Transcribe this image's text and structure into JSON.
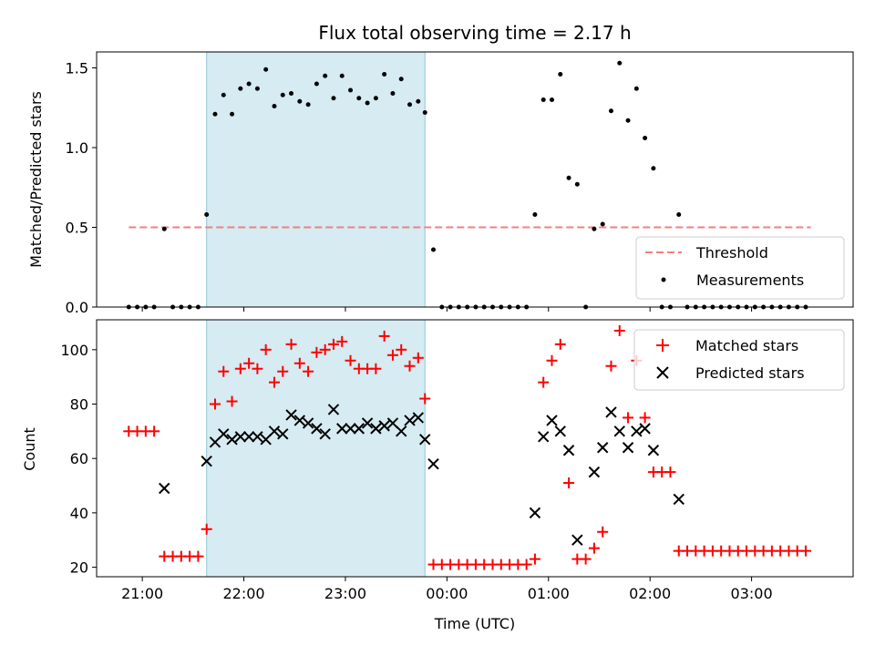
{
  "chart_data": [
    {
      "type": "scatter",
      "title": "Flux total observing time = 2.17 h",
      "ylabel": "Matched/Predicted stars",
      "xlabel": "",
      "x_unit": "hours (UTC, past midnight as 24+)",
      "xlim": [
        20.55,
        28.0
      ],
      "ylim": [
        0.0,
        1.6
      ],
      "yticks": [
        "0.0",
        "0.5",
        "1.0",
        "1.5"
      ],
      "shaded_interval": [
        "21:38",
        "23:47"
      ],
      "threshold": {
        "name": "Threshold",
        "value": 0.5,
        "x_range": [
          "20:52",
          "27:35"
        ],
        "color": "#f08080"
      },
      "legend": {
        "position": "lower-right",
        "entries": [
          "Threshold",
          "Measurements"
        ]
      },
      "series": [
        {
          "name": "Measurements",
          "color": "#000000",
          "points": [
            [
              "20:52",
              0.0
            ],
            [
              "20:57",
              0.0
            ],
            [
              "21:02",
              0.0
            ],
            [
              "21:07",
              0.0
            ],
            [
              "21:13",
              0.49
            ],
            [
              "21:18",
              0.0
            ],
            [
              "21:23",
              0.0
            ],
            [
              "21:28",
              0.0
            ],
            [
              "21:33",
              0.0
            ],
            [
              "21:38",
              0.58
            ],
            [
              "21:43",
              1.21
            ],
            [
              "21:48",
              1.33
            ],
            [
              "21:53",
              1.21
            ],
            [
              "21:58",
              1.37
            ],
            [
              "22:03",
              1.4
            ],
            [
              "22:08",
              1.37
            ],
            [
              "22:13",
              1.49
            ],
            [
              "22:18",
              1.26
            ],
            [
              "22:23",
              1.33
            ],
            [
              "22:28",
              1.34
            ],
            [
              "22:33",
              1.29
            ],
            [
              "22:38",
              1.27
            ],
            [
              "22:43",
              1.4
            ],
            [
              "22:48",
              1.45
            ],
            [
              "22:53",
              1.31
            ],
            [
              "22:58",
              1.45
            ],
            [
              "23:03",
              1.36
            ],
            [
              "23:08",
              1.31
            ],
            [
              "23:13",
              1.28
            ],
            [
              "23:18",
              1.31
            ],
            [
              "23:23",
              1.46
            ],
            [
              "23:28",
              1.34
            ],
            [
              "23:33",
              1.43
            ],
            [
              "23:38",
              1.27
            ],
            [
              "23:43",
              1.29
            ],
            [
              "23:47",
              1.22
            ],
            [
              "23:52",
              0.36
            ],
            [
              "23:57",
              0.0
            ],
            [
              "24:02",
              0.0
            ],
            [
              "24:07",
              0.0
            ],
            [
              "24:12",
              0.0
            ],
            [
              "24:17",
              0.0
            ],
            [
              "24:22",
              0.0
            ],
            [
              "24:27",
              0.0
            ],
            [
              "24:32",
              0.0
            ],
            [
              "24:37",
              0.0
            ],
            [
              "24:42",
              0.0
            ],
            [
              "24:47",
              0.0
            ],
            [
              "24:52",
              0.58
            ],
            [
              "24:57",
              1.3
            ],
            [
              "25:02",
              1.3
            ],
            [
              "25:07",
              1.46
            ],
            [
              "25:12",
              0.81
            ],
            [
              "25:17",
              0.77
            ],
            [
              "25:22",
              0.0
            ],
            [
              "25:27",
              0.49
            ],
            [
              "25:32",
              0.52
            ],
            [
              "25:37",
              1.23
            ],
            [
              "25:42",
              1.53
            ],
            [
              "25:47",
              1.17
            ],
            [
              "25:52",
              1.37
            ],
            [
              "25:57",
              1.06
            ],
            [
              "26:02",
              0.87
            ],
            [
              "26:07",
              0.0
            ],
            [
              "26:12",
              0.0
            ],
            [
              "26:17",
              0.58
            ],
            [
              "26:22",
              0.0
            ],
            [
              "26:27",
              0.0
            ],
            [
              "26:32",
              0.0
            ],
            [
              "26:37",
              0.0
            ],
            [
              "26:42",
              0.0
            ],
            [
              "26:47",
              0.0
            ],
            [
              "26:52",
              0.0
            ],
            [
              "26:57",
              0.0
            ],
            [
              "27:02",
              0.0
            ],
            [
              "27:07",
              0.0
            ],
            [
              "27:12",
              0.0
            ],
            [
              "27:17",
              0.0
            ],
            [
              "27:22",
              0.0
            ],
            [
              "27:27",
              0.0
            ],
            [
              "27:32",
              0.0
            ]
          ]
        }
      ]
    },
    {
      "type": "scatter",
      "title": "",
      "ylabel": "Count",
      "xlabel": "Time (UTC)",
      "x_unit": "hours (UTC, past midnight as 24+)",
      "xlim": [
        20.55,
        28.0
      ],
      "ylim": [
        16.5,
        111
      ],
      "yticks": [
        "20",
        "40",
        "60",
        "80",
        "100"
      ],
      "xticks": [
        "21:00",
        "22:00",
        "23:00",
        "00:00",
        "01:00",
        "02:00",
        "03:00"
      ],
      "shaded_interval": [
        "21:38",
        "23:47"
      ],
      "legend": {
        "position": "top-right",
        "entries": [
          "Matched stars",
          "Predicted stars"
        ]
      },
      "series": [
        {
          "name": "Matched stars",
          "marker": "plus",
          "color": "#ff0000",
          "points": [
            [
              "20:52",
              70
            ],
            [
              "20:57",
              70
            ],
            [
              "21:02",
              70
            ],
            [
              "21:07",
              70
            ],
            [
              "21:13",
              24
            ],
            [
              "21:18",
              24
            ],
            [
              "21:23",
              24
            ],
            [
              "21:28",
              24
            ],
            [
              "21:33",
              24
            ],
            [
              "21:38",
              34
            ],
            [
              "21:43",
              80
            ],
            [
              "21:48",
              92
            ],
            [
              "21:53",
              81
            ],
            [
              "21:58",
              93
            ],
            [
              "22:03",
              95
            ],
            [
              "22:08",
              93
            ],
            [
              "22:13",
              100
            ],
            [
              "22:18",
              88
            ],
            [
              "22:23",
              92
            ],
            [
              "22:28",
              102
            ],
            [
              "22:33",
              95
            ],
            [
              "22:38",
              92
            ],
            [
              "22:43",
              99
            ],
            [
              "22:48",
              100
            ],
            [
              "22:53",
              102
            ],
            [
              "22:58",
              103
            ],
            [
              "23:03",
              96
            ],
            [
              "23:08",
              93
            ],
            [
              "23:13",
              93
            ],
            [
              "23:18",
              93
            ],
            [
              "23:23",
              105
            ],
            [
              "23:28",
              98
            ],
            [
              "23:33",
              100
            ],
            [
              "23:38",
              94
            ],
            [
              "23:43",
              97
            ],
            [
              "23:47",
              82
            ],
            [
              "23:52",
              21
            ],
            [
              "23:57",
              21
            ],
            [
              "24:02",
              21
            ],
            [
              "24:07",
              21
            ],
            [
              "24:12",
              21
            ],
            [
              "24:17",
              21
            ],
            [
              "24:22",
              21
            ],
            [
              "24:27",
              21
            ],
            [
              "24:32",
              21
            ],
            [
              "24:37",
              21
            ],
            [
              "24:42",
              21
            ],
            [
              "24:47",
              21
            ],
            [
              "24:52",
              23
            ],
            [
              "24:57",
              88
            ],
            [
              "25:02",
              96
            ],
            [
              "25:07",
              102
            ],
            [
              "25:12",
              51
            ],
            [
              "25:17",
              23
            ],
            [
              "25:22",
              23
            ],
            [
              "25:27",
              27
            ],
            [
              "25:32",
              33
            ],
            [
              "25:37",
              94
            ],
            [
              "25:42",
              107
            ],
            [
              "25:47",
              75
            ],
            [
              "25:52",
              96
            ],
            [
              "25:57",
              75
            ],
            [
              "26:02",
              55
            ],
            [
              "26:07",
              55
            ],
            [
              "26:12",
              55
            ],
            [
              "26:17",
              26
            ],
            [
              "26:22",
              26
            ],
            [
              "26:27",
              26
            ],
            [
              "26:32",
              26
            ],
            [
              "26:37",
              26
            ],
            [
              "26:42",
              26
            ],
            [
              "26:47",
              26
            ],
            [
              "26:52",
              26
            ],
            [
              "26:57",
              26
            ],
            [
              "27:02",
              26
            ],
            [
              "27:07",
              26
            ],
            [
              "27:12",
              26
            ],
            [
              "27:17",
              26
            ],
            [
              "27:22",
              26
            ],
            [
              "27:27",
              26
            ],
            [
              "27:32",
              26
            ]
          ]
        },
        {
          "name": "Predicted stars",
          "marker": "x",
          "color": "#000000",
          "points": [
            [
              "21:13",
              49
            ],
            [
              "21:38",
              59
            ],
            [
              "21:43",
              66
            ],
            [
              "21:48",
              69
            ],
            [
              "21:53",
              67
            ],
            [
              "21:58",
              68
            ],
            [
              "22:03",
              68
            ],
            [
              "22:08",
              68
            ],
            [
              "22:13",
              67
            ],
            [
              "22:18",
              70
            ],
            [
              "22:23",
              69
            ],
            [
              "22:28",
              76
            ],
            [
              "22:33",
              74
            ],
            [
              "22:38",
              73
            ],
            [
              "22:43",
              71
            ],
            [
              "22:48",
              69
            ],
            [
              "22:53",
              78
            ],
            [
              "22:58",
              71
            ],
            [
              "23:03",
              71
            ],
            [
              "23:08",
              71
            ],
            [
              "23:13",
              73
            ],
            [
              "23:18",
              71
            ],
            [
              "23:23",
              72
            ],
            [
              "23:28",
              73
            ],
            [
              "23:33",
              70
            ],
            [
              "23:38",
              74
            ],
            [
              "23:43",
              75
            ],
            [
              "23:47",
              67
            ],
            [
              "23:52",
              58
            ],
            [
              "24:52",
              40
            ],
            [
              "24:57",
              68
            ],
            [
              "25:02",
              74
            ],
            [
              "25:07",
              70
            ],
            [
              "25:12",
              63
            ],
            [
              "25:17",
              30
            ],
            [
              "25:27",
              55
            ],
            [
              "25:32",
              64
            ],
            [
              "25:37",
              77
            ],
            [
              "25:42",
              70
            ],
            [
              "25:47",
              64
            ],
            [
              "25:52",
              70
            ],
            [
              "25:57",
              71
            ],
            [
              "26:02",
              63
            ],
            [
              "26:17",
              45
            ]
          ]
        }
      ]
    }
  ]
}
